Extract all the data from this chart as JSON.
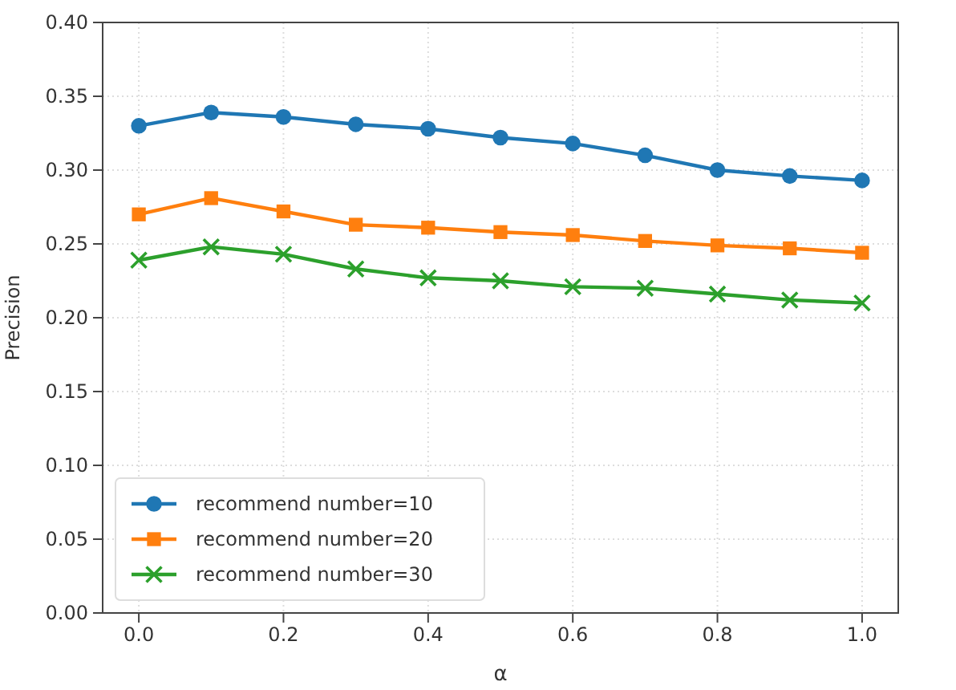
{
  "chart_data": {
    "type": "line",
    "xlabel": "α",
    "ylabel": "Precision",
    "x": [
      0,
      0.1,
      0.2,
      0.3,
      0.4,
      0.5,
      0.6,
      0.7,
      0.8,
      0.9,
      1.0
    ],
    "series": [
      {
        "name": "recommend number=10",
        "color": "#1f77b4",
        "marker": "circle",
        "values": [
          0.33,
          0.339,
          0.336,
          0.331,
          0.328,
          0.322,
          0.318,
          0.31,
          0.3,
          0.296,
          0.293
        ]
      },
      {
        "name": "recommend number=20",
        "color": "#ff7f0e",
        "marker": "square",
        "values": [
          0.27,
          0.281,
          0.272,
          0.263,
          0.261,
          0.258,
          0.256,
          0.252,
          0.249,
          0.247,
          0.244
        ]
      },
      {
        "name": "recommend number=30",
        "color": "#2ca02c",
        "marker": "cross",
        "values": [
          0.239,
          0.248,
          0.243,
          0.233,
          0.227,
          0.225,
          0.221,
          0.22,
          0.216,
          0.212,
          0.21
        ]
      }
    ],
    "xlim": [
      -0.05,
      1.05
    ],
    "xticks": [
      {
        "value": 0,
        "label": "0.0"
      },
      0.2,
      0.4,
      0.6,
      0.8,
      {
        "value": 1,
        "label": "1.0"
      }
    ],
    "ylim": [
      0,
      0.4
    ],
    "yticks": [
      {
        "value": 0,
        "label": "0.00"
      },
      0.05,
      {
        "value": 0.1,
        "label": "0.10"
      },
      0.15,
      {
        "value": 0.2,
        "label": "0.20"
      },
      0.25,
      {
        "value": 0.3,
        "label": "0.30"
      },
      0.35,
      {
        "value": 0.4,
        "label": "0.40"
      }
    ],
    "grid": true,
    "legend": "bottom left",
    "line_style": "solid"
  }
}
